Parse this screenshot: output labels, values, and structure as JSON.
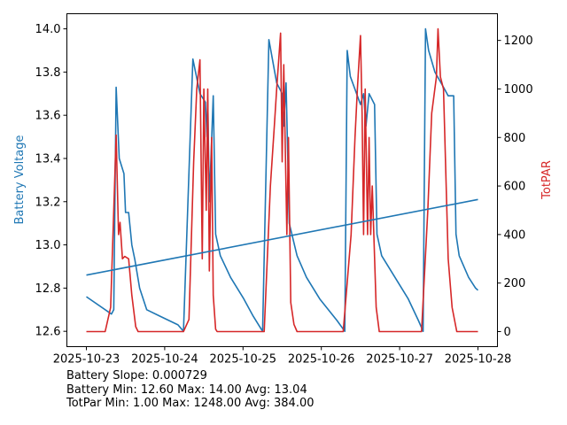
{
  "chart_data": {
    "type": "line",
    "x_unit": "days since 2025-10-23",
    "x_ticks": [
      "2025-10-23",
      "2025-10-24",
      "2025-10-25",
      "2025-10-26",
      "2025-10-27",
      "2025-10-28"
    ],
    "xlim": [
      -0.249,
      5.249
    ],
    "left_axis": {
      "label": "Battery Voltage",
      "color": "#1f77b4",
      "ylim": [
        12.529,
        14.07
      ],
      "ticks": [
        "12.6",
        "12.8",
        "13.0",
        "13.2",
        "13.4",
        "13.6",
        "13.8",
        "14.0"
      ]
    },
    "right_axis": {
      "label": "TotPAR",
      "color": "#d62728",
      "ylim": [
        -62,
        1310
      ],
      "ticks": [
        "0",
        "200",
        "400",
        "600",
        "800",
        "1000",
        "1200"
      ]
    },
    "grid": false,
    "series": [
      {
        "name": "Battery Voltage",
        "axis": "left",
        "color": "#1f77b4",
        "points": [
          [
            0,
            12.76
          ],
          [
            0.32,
            12.68
          ],
          [
            0.35,
            12.7
          ],
          [
            0.38,
            13.73
          ],
          [
            0.42,
            13.4
          ],
          [
            0.48,
            13.33
          ],
          [
            0.5,
            13.15
          ],
          [
            0.54,
            13.15
          ],
          [
            0.58,
            13.0
          ],
          [
            0.62,
            12.93
          ],
          [
            0.68,
            12.8
          ],
          [
            0.77,
            12.7
          ],
          [
            0.94,
            12.67
          ],
          [
            1.17,
            12.63
          ],
          [
            1.24,
            12.6
          ],
          [
            1.36,
            13.86
          ],
          [
            1.45,
            13.7
          ],
          [
            1.52,
            13.66
          ],
          [
            1.54,
            13.5
          ],
          [
            1.55,
            13.67
          ],
          [
            1.57,
            13.2
          ],
          [
            1.62,
            13.69
          ],
          [
            1.65,
            13.05
          ],
          [
            1.71,
            12.95
          ],
          [
            1.84,
            12.85
          ],
          [
            2.01,
            12.75
          ],
          [
            2.13,
            12.67
          ],
          [
            2.25,
            12.6
          ],
          [
            2.33,
            13.95
          ],
          [
            2.38,
            13.85
          ],
          [
            2.43,
            13.75
          ],
          [
            2.5,
            13.7
          ],
          [
            2.52,
            13.55
          ],
          [
            2.55,
            13.75
          ],
          [
            2.59,
            13.1
          ],
          [
            2.69,
            12.95
          ],
          [
            2.81,
            12.85
          ],
          [
            2.98,
            12.75
          ],
          [
            3.2,
            12.65
          ],
          [
            3.3,
            12.6
          ],
          [
            3.33,
            13.9
          ],
          [
            3.37,
            13.78
          ],
          [
            3.45,
            13.7
          ],
          [
            3.5,
            13.65
          ],
          [
            3.54,
            13.7
          ],
          [
            3.57,
            13.55
          ],
          [
            3.61,
            13.7
          ],
          [
            3.68,
            13.65
          ],
          [
            3.71,
            13.05
          ],
          [
            3.77,
            12.95
          ],
          [
            3.94,
            12.85
          ],
          [
            4.11,
            12.75
          ],
          [
            4.24,
            12.65
          ],
          [
            4.3,
            12.6
          ],
          [
            4.33,
            14.0
          ],
          [
            4.37,
            13.9
          ],
          [
            4.45,
            13.8
          ],
          [
            4.56,
            13.73
          ],
          [
            4.62,
            13.69
          ],
          [
            4.69,
            13.69
          ],
          [
            4.72,
            13.05
          ],
          [
            4.76,
            12.95
          ],
          [
            4.88,
            12.85
          ],
          [
            4.97,
            12.8
          ],
          [
            5.0,
            12.79
          ]
        ]
      },
      {
        "name": "TotPAR",
        "axis": "right",
        "color": "#d62728",
        "points": [
          [
            0,
            0
          ],
          [
            0.24,
            0
          ],
          [
            0.31,
            100
          ],
          [
            0.35,
            500
          ],
          [
            0.38,
            810
          ],
          [
            0.41,
            400
          ],
          [
            0.43,
            450
          ],
          [
            0.46,
            300
          ],
          [
            0.49,
            310
          ],
          [
            0.54,
            300
          ],
          [
            0.58,
            150
          ],
          [
            0.6,
            100
          ],
          [
            0.63,
            20
          ],
          [
            0.66,
            0
          ],
          [
            1.24,
            0
          ],
          [
            1.31,
            50
          ],
          [
            1.37,
            700
          ],
          [
            1.41,
            1000
          ],
          [
            1.45,
            1120
          ],
          [
            1.48,
            300
          ],
          [
            1.5,
            1000
          ],
          [
            1.53,
            500
          ],
          [
            1.55,
            1000
          ],
          [
            1.57,
            250
          ],
          [
            1.6,
            800
          ],
          [
            1.62,
            150
          ],
          [
            1.65,
            10
          ],
          [
            1.67,
            0
          ],
          [
            2.27,
            0
          ],
          [
            2.35,
            600
          ],
          [
            2.4,
            850
          ],
          [
            2.43,
            1000
          ],
          [
            2.48,
            1230
          ],
          [
            2.5,
            700
          ],
          [
            2.52,
            1100
          ],
          [
            2.56,
            400
          ],
          [
            2.58,
            800
          ],
          [
            2.61,
            120
          ],
          [
            2.65,
            30
          ],
          [
            2.69,
            0
          ],
          [
            3.28,
            0
          ],
          [
            3.38,
            400
          ],
          [
            3.43,
            800
          ],
          [
            3.46,
            1000
          ],
          [
            3.5,
            1220
          ],
          [
            3.52,
            900
          ],
          [
            3.54,
            400
          ],
          [
            3.56,
            1000
          ],
          [
            3.59,
            400
          ],
          [
            3.61,
            800
          ],
          [
            3.63,
            400
          ],
          [
            3.65,
            600
          ],
          [
            3.7,
            100
          ],
          [
            3.74,
            0
          ],
          [
            4.28,
            0
          ],
          [
            4.36,
            500
          ],
          [
            4.41,
            900
          ],
          [
            4.47,
            1050
          ],
          [
            4.49,
            1248
          ],
          [
            4.52,
            1050
          ],
          [
            4.56,
            1000
          ],
          [
            4.62,
            300
          ],
          [
            4.67,
            100
          ],
          [
            4.73,
            0
          ],
          [
            5.0,
            0
          ]
        ]
      },
      {
        "name": "Battery Trend",
        "axis": "left",
        "color": "#1f77b4",
        "points": [
          [
            0,
            12.86
          ],
          [
            5,
            13.21
          ]
        ]
      }
    ]
  },
  "stats": {
    "line1": "Battery Slope: 0.000729",
    "line2": "Battery Min: 12.60 Max: 14.00 Avg: 13.04",
    "line3": "TotPar Min: 1.00 Max: 1248.00 Avg: 384.00"
  }
}
